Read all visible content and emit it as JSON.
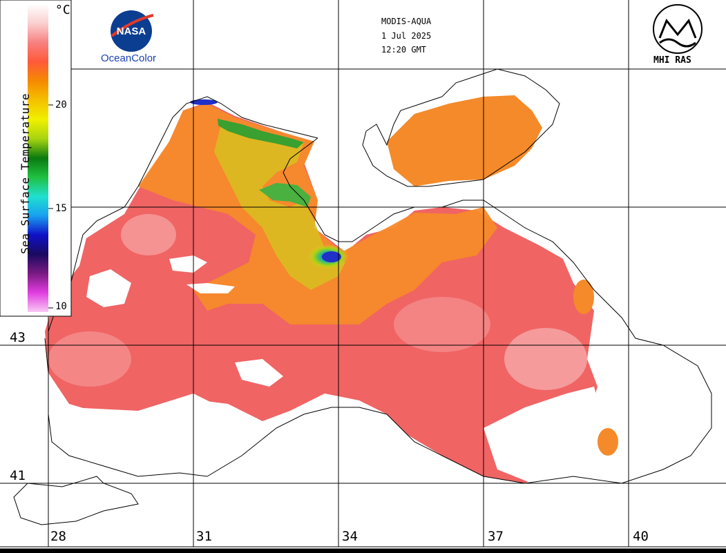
{
  "header": {
    "sensor": "MODIS-AQUA",
    "date": "1 Jul 2025",
    "time": "12:20 GMT"
  },
  "logos": {
    "left_text": "OceanColor",
    "left_badge": "NASA",
    "right_text": "MHI RAS"
  },
  "colorbar": {
    "title": "Sea Surface Temperature",
    "unit": "°C",
    "ticks": [
      "20",
      "15",
      "10"
    ],
    "tick_values": [
      20,
      15,
      10
    ],
    "range": [
      10,
      25
    ],
    "colors": [
      "#f9c9f5",
      "#e13de0",
      "#7a1a82",
      "#1a0a60",
      "#1010c8",
      "#18a0f0",
      "#20e0d0",
      "#20c040",
      "#0a7a10",
      "#a8d410",
      "#f0f000",
      "#f5c000",
      "#f58a00",
      "#ff5a3a",
      "#f88080",
      "#fbd0d0",
      "#ffffff"
    ]
  },
  "grid": {
    "lon_labels": [
      "28",
      "31",
      "34",
      "37",
      "40"
    ],
    "lat_labels": [
      "43",
      "41"
    ]
  },
  "colors": {
    "warm_sea": "#f06666",
    "very_warm": "#f9b0b0",
    "orange": "#f48a2a",
    "yellow": "#d8c820",
    "cool_green": "#2ca030",
    "cold_blue": "#1a3ad0",
    "land": "#ffffff",
    "coast": "#000000"
  }
}
